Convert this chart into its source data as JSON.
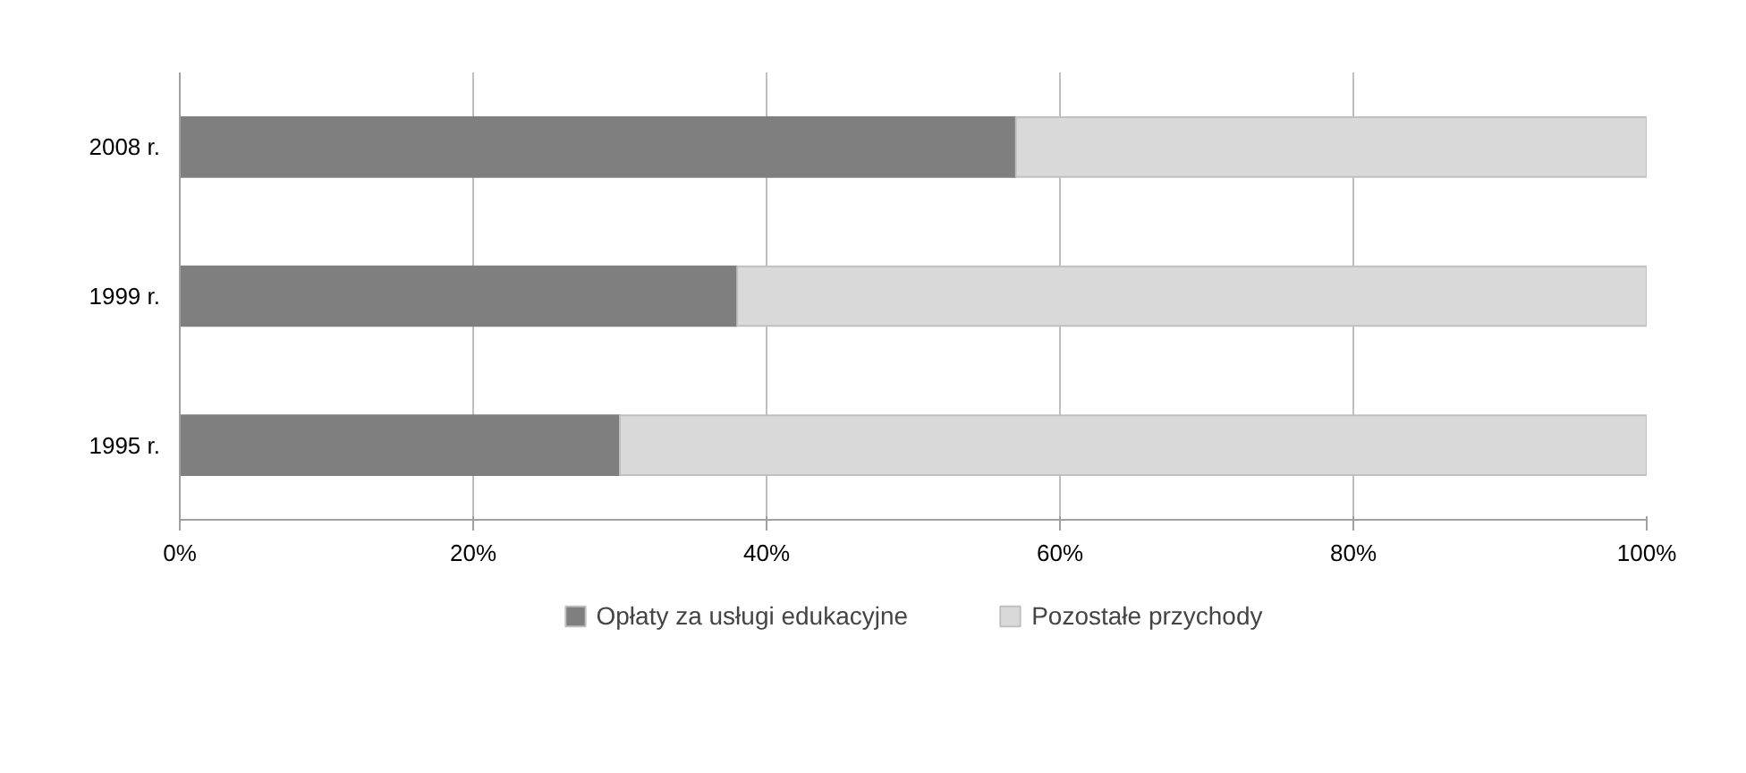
{
  "chart_data": {
    "type": "bar",
    "orientation": "horizontal",
    "stacked": true,
    "categories": [
      "2008 r.",
      "1999 r.",
      "1995 r."
    ],
    "series": [
      {
        "name": "Opłaty za usługi edukacyjne",
        "color": "#7f7f7f",
        "values": [
          57,
          38,
          30
        ]
      },
      {
        "name": "Pozostałe przychody",
        "color": "#d9d9d9",
        "values": [
          43,
          62,
          70
        ]
      }
    ],
    "xlim": [
      0,
      100
    ],
    "xticks": [
      {
        "value": 0,
        "label": "0%"
      },
      {
        "value": 20,
        "label": "20%"
      },
      {
        "value": 40,
        "label": "40%"
      },
      {
        "value": 60,
        "label": "60%"
      },
      {
        "value": 80,
        "label": "80%"
      },
      {
        "value": 100,
        "label": "100%"
      }
    ],
    "grid": "x",
    "legend": "bottom"
  }
}
